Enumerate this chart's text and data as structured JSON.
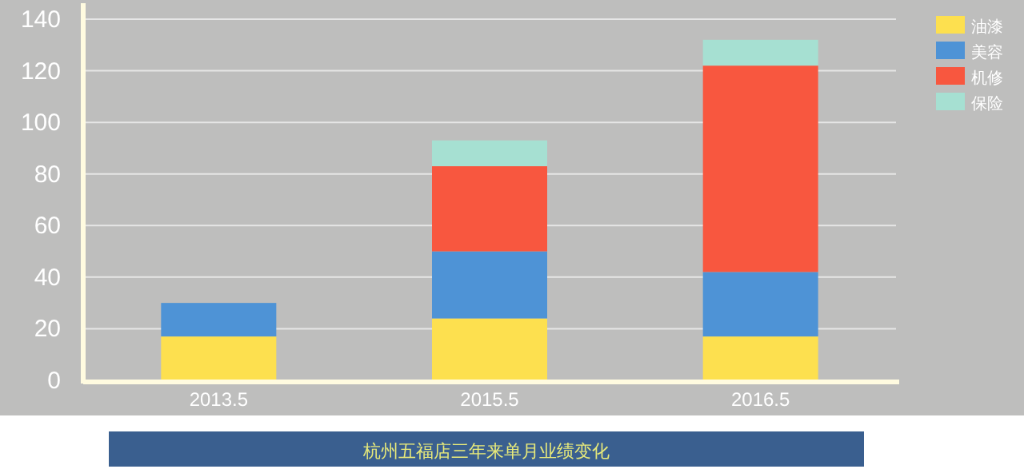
{
  "chart_data": {
    "type": "bar",
    "stacked": true,
    "title": "杭州五福店三年来单月业绩变化",
    "categories": [
      "2013.5",
      "2015.5",
      "2016.5"
    ],
    "series": [
      {
        "name": "油漆",
        "color": "#fde04f",
        "values": [
          17,
          24,
          17
        ]
      },
      {
        "name": "美容",
        "color": "#4e93d6",
        "values": [
          13,
          26,
          25
        ]
      },
      {
        "name": "机修",
        "color": "#f8573f",
        "values": [
          null,
          33,
          80
        ]
      },
      {
        "name": "保险",
        "color": "#a6e0d2",
        "values": [
          null,
          10,
          10
        ]
      }
    ],
    "ylim": [
      0,
      140
    ],
    "yticks": [
      0,
      20,
      40,
      60,
      80,
      100,
      120,
      140
    ],
    "grid": "y",
    "legend": "right"
  }
}
